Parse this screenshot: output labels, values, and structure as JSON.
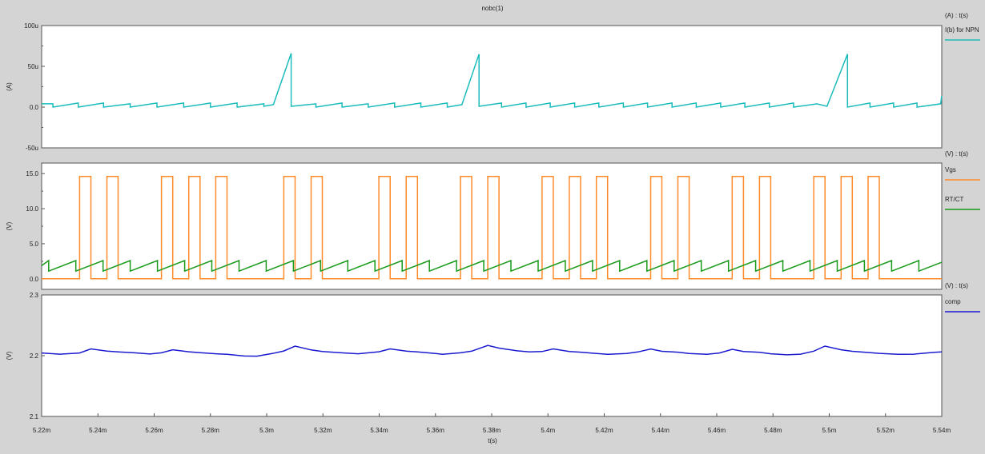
{
  "window": {
    "title": "nobc(1)",
    "x_axis_label": "t(s)"
  },
  "colors": {
    "background": "#d4d4d4",
    "plot_background": "#ffffff",
    "ib_npn": "#1cbcbc",
    "vgs": "#ff8a2a",
    "rtct": "#1a9a1a",
    "comp": "#1a1ad0"
  },
  "chart_data": [
    {
      "type": "line",
      "title": "",
      "units_header": "(A) : t(s)",
      "ylabel": "(A)",
      "xlabel": "t(s)",
      "xlim": [
        5.22,
        5.54
      ],
      "ylim": [
        -50,
        100
      ],
      "yticks": [
        -50,
        0,
        50,
        100
      ],
      "ytick_labels": [
        "-50u",
        "0.0",
        "50u",
        "100u"
      ],
      "grid": false,
      "legend_position": "right",
      "series": [
        {
          "name": "I(b) for NPN",
          "color": "#1cbcbc",
          "x": [
            5.22,
            5.224,
            5.224,
            5.233,
            5.233,
            5.242,
            5.242,
            5.2515,
            5.2515,
            5.261,
            5.261,
            5.2705,
            5.2705,
            5.28,
            5.28,
            5.2895,
            5.2895,
            5.299,
            5.299,
            5.3024,
            5.3087,
            5.3087,
            5.3175,
            5.3175,
            5.3268,
            5.3268,
            5.3361,
            5.3361,
            5.3455,
            5.3455,
            5.3548,
            5.3548,
            5.3642,
            5.3642,
            5.3694,
            5.3755,
            5.3755,
            5.3835,
            5.3835,
            5.3922,
            5.3922,
            5.4008,
            5.4008,
            5.4095,
            5.4095,
            5.4181,
            5.4181,
            5.4268,
            5.4268,
            5.4354,
            5.4354,
            5.4441,
            5.4441,
            5.4527,
            5.4527,
            5.4614,
            5.4614,
            5.47,
            5.47,
            5.4787,
            5.4787,
            5.4873,
            5.4873,
            5.4956,
            5.4992,
            5.5065,
            5.5065,
            5.5145,
            5.5145,
            5.5229,
            5.5229,
            5.5312,
            5.5312,
            5.5396,
            5.54
          ],
          "values": [
            4,
            4,
            0,
            5,
            0,
            5,
            0,
            4,
            0,
            5,
            0,
            5,
            0,
            5,
            0,
            5,
            0,
            4,
            1,
            3,
            66,
            1,
            4,
            0,
            5,
            0,
            4,
            0,
            5,
            0,
            5,
            0,
            5,
            0,
            3,
            65,
            1,
            5,
            0,
            5,
            0,
            5,
            0,
            5,
            0,
            5,
            0,
            5,
            0,
            5,
            0,
            5,
            0,
            5,
            0,
            5,
            0,
            5,
            0,
            5,
            0,
            5,
            0,
            4,
            1,
            65,
            0,
            5,
            0,
            5,
            0,
            5,
            0,
            4,
            14
          ]
        }
      ]
    },
    {
      "type": "line",
      "title": "",
      "units_header": "(V) : t(s)",
      "ylabel": "(V)",
      "xlabel": "t(s)",
      "xlim": [
        5.22,
        5.54
      ],
      "ylim": [
        -1.5,
        16.5
      ],
      "yticks": [
        0,
        5,
        10,
        15
      ],
      "ytick_labels": [
        "0.0",
        "5.0",
        "10.0",
        "15.0"
      ],
      "grid": false,
      "legend_position": "right",
      "series": [
        {
          "name": "Vgs",
          "color": "#ff8a2a",
          "pulses": [
            [
              5.2335,
              5.2375
            ],
            [
              5.2432,
              5.2472
            ],
            [
              5.2626,
              5.2666
            ],
            [
              5.2723,
              5.2763
            ],
            [
              5.2819,
              5.2859
            ],
            [
              5.3061,
              5.3101
            ],
            [
              5.3158,
              5.3198
            ],
            [
              5.3399,
              5.3439
            ],
            [
              5.3496,
              5.3536
            ],
            [
              5.3689,
              5.3729
            ],
            [
              5.3786,
              5.3826
            ],
            [
              5.3979,
              5.4019
            ],
            [
              5.4076,
              5.4116
            ],
            [
              5.4172,
              5.4212
            ],
            [
              5.4365,
              5.4405
            ],
            [
              5.4462,
              5.4502
            ],
            [
              5.4655,
              5.4695
            ],
            [
              5.4752,
              5.4792
            ],
            [
              5.4945,
              5.4985
            ],
            [
              5.5042,
              5.5082
            ],
            [
              5.5138,
              5.5178
            ]
          ],
          "low": 0,
          "high": 14.6
        },
        {
          "name": "RT/CT",
          "color": "#1a9a1a",
          "sawtooth": {
            "start": 5.2225,
            "period": 0.009667,
            "low": 1.1,
            "high": 2.6
          }
        }
      ]
    },
    {
      "type": "line",
      "title": "",
      "units_header": "(V) : t(s)",
      "ylabel": "(V)",
      "xlabel": "t(s)",
      "xlim": [
        5.22,
        5.54
      ],
      "ylim": [
        2.1,
        2.3
      ],
      "yticks": [
        2.1,
        2.2,
        2.3
      ],
      "ytick_labels": [
        "2.1",
        "2.2",
        "2.3"
      ],
      "xticks": [
        5.22,
        5.24,
        5.26,
        5.28,
        5.3,
        5.32,
        5.34,
        5.36,
        5.38,
        5.4,
        5.42,
        5.44,
        5.46,
        5.48,
        5.5,
        5.52,
        5.54
      ],
      "xtick_labels": [
        "5.22m",
        "5.24m",
        "5.26m",
        "5.28m",
        "5.3m",
        "5.32m",
        "5.34m",
        "5.36m",
        "5.38m",
        "5.4m",
        "5.42m",
        "5.44m",
        "5.46m",
        "5.48m",
        "5.5m",
        "5.52m",
        "5.54m"
      ],
      "grid": false,
      "legend_position": "right",
      "series": [
        {
          "name": "comp",
          "color": "#1a1ad0",
          "x": [
            5.22,
            5.2265,
            5.2335,
            5.2375,
            5.2432,
            5.2472,
            5.253,
            5.2585,
            5.2626,
            5.2666,
            5.2723,
            5.2763,
            5.2819,
            5.2859,
            5.292,
            5.2965,
            5.302,
            5.3061,
            5.3101,
            5.3158,
            5.3198,
            5.326,
            5.3325,
            5.3399,
            5.3439,
            5.3496,
            5.3536,
            5.36,
            5.3625,
            5.3689,
            5.3729,
            5.3786,
            5.3826,
            5.389,
            5.3935,
            5.3979,
            5.4019,
            5.4076,
            5.4116,
            5.4172,
            5.4212,
            5.428,
            5.432,
            5.4365,
            5.4405,
            5.4462,
            5.4502,
            5.4565,
            5.461,
            5.4655,
            5.4695,
            5.4752,
            5.4792,
            5.485,
            5.4898,
            5.4945,
            5.4985,
            5.5042,
            5.5082,
            5.5138,
            5.5178,
            5.5245,
            5.53,
            5.5375,
            5.54
          ],
          "values": [
            2.2045,
            2.2025,
            2.2045,
            2.2112,
            2.2075,
            2.2062,
            2.2048,
            2.2028,
            2.2048,
            2.2098,
            2.2065,
            2.205,
            2.2032,
            2.2022,
            2.1995,
            2.1992,
            2.2035,
            2.2078,
            2.2158,
            2.2095,
            2.2068,
            2.205,
            2.2032,
            2.2065,
            2.2112,
            2.2075,
            2.2062,
            2.2035,
            2.2022,
            2.2048,
            2.2075,
            2.2168,
            2.2125,
            2.208,
            2.2062,
            2.2068,
            2.2112,
            2.207,
            2.2058,
            2.2035,
            2.2022,
            2.2035,
            2.2062,
            2.211,
            2.2072,
            2.2058,
            2.2035,
            2.2022,
            2.2045,
            2.2105,
            2.207,
            2.2055,
            2.2032,
            2.2015,
            2.2025,
            2.2075,
            2.2158,
            2.2098,
            2.2072,
            2.2052,
            2.2038,
            2.2022,
            2.2025,
            2.2055,
            2.2062
          ]
        }
      ]
    }
  ]
}
